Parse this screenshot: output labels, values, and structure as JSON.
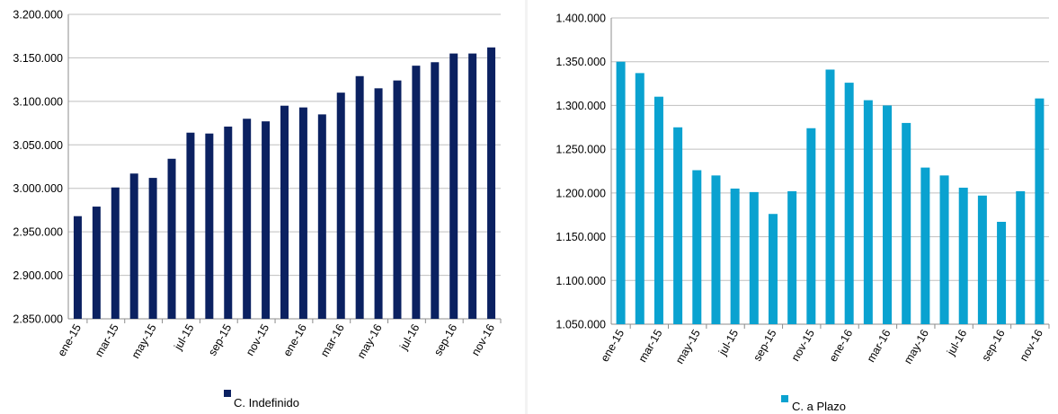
{
  "chart_data": [
    {
      "type": "bar",
      "title": "",
      "xlabel": "",
      "ylabel": "",
      "color": "#0b2161",
      "ylim": [
        2850000,
        3200000
      ],
      "ytick_values": [
        2850000,
        2900000,
        2950000,
        3000000,
        3050000,
        3100000,
        3150000,
        3200000
      ],
      "ytick_labels": [
        "2.850.000",
        "2.900.000",
        "2.950.000",
        "3.000.000",
        "3.050.000",
        "3.100.000",
        "3.150.000",
        "3.200.000"
      ],
      "x_tick_labels": [
        "ene-15",
        "mar-15",
        "may-15",
        "jul-15",
        "sep-15",
        "nov-15",
        "ene-16",
        "mar-16",
        "may-16",
        "jul-16",
        "sep-16",
        "nov-16"
      ],
      "grid": "horizontal",
      "legend_position": "bottom",
      "series": [
        {
          "name": "C. Indefinido",
          "values": [
            2968000,
            2979000,
            3001000,
            3017000,
            3012000,
            3034000,
            3064000,
            3063000,
            3071000,
            3080000,
            3077000,
            3095000,
            3093000,
            3085000,
            3110000,
            3129000,
            3115000,
            3124000,
            3141000,
            3145000,
            3155000,
            3155000,
            3162000
          ]
        }
      ]
    },
    {
      "type": "bar",
      "title": "",
      "xlabel": "",
      "ylabel": "",
      "color": "#0aa2d0",
      "ylim": [
        1050000,
        1400000
      ],
      "ytick_values": [
        1050000,
        1100000,
        1150000,
        1200000,
        1250000,
        1300000,
        1350000,
        1400000
      ],
      "ytick_labels": [
        "1.050.000",
        "1.100.000",
        "1.150.000",
        "1.200.000",
        "1.250.000",
        "1.300.000",
        "1.350.000",
        "1.400.000"
      ],
      "x_tick_labels": [
        "ene-15",
        "mar-15",
        "may-15",
        "jul-15",
        "sep-15",
        "nov-15",
        "ene-16",
        "mar-16",
        "may-16",
        "jul-16",
        "sep-16",
        "nov-16"
      ],
      "grid": "horizontal",
      "legend_position": "bottom",
      "series": [
        {
          "name": "C. a Plazo",
          "values": [
            1350000,
            1337000,
            1310000,
            1275000,
            1226000,
            1220000,
            1205000,
            1201000,
            1176000,
            1202000,
            1274000,
            1341000,
            1326000,
            1306000,
            1300000,
            1280000,
            1229000,
            1220000,
            1206000,
            1197000,
            1167000,
            1202000,
            1308000
          ]
        }
      ]
    }
  ]
}
